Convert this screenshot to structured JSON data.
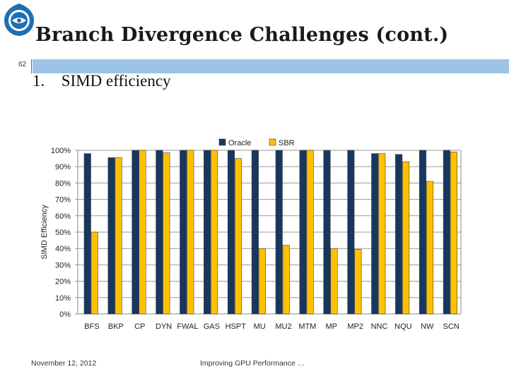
{
  "slide": {
    "title": "Branch Divergence Challenges (cont.)",
    "number": "62",
    "bullet_marker": "1.",
    "bullet_text": "SIMD efficiency",
    "footer_date": "November 12, 2012",
    "footer_title": "Improving GPU Performance …"
  },
  "colors": {
    "oracle": "#17375e",
    "sbr": "#ffc000",
    "header_bar": "#9dc3e6"
  },
  "chart_data": {
    "type": "bar",
    "ylabel": "SIMD Efficiency",
    "ylim": [
      0,
      100
    ],
    "yticks": [
      "0%",
      "10%",
      "20%",
      "30%",
      "40%",
      "50%",
      "60%",
      "70%",
      "80%",
      "90%",
      "100%"
    ],
    "legend_position": "top",
    "grid": true,
    "categories": [
      "BFS",
      "BKP",
      "CP",
      "DYN",
      "FWAL",
      "GAS",
      "HSPT",
      "MU",
      "MU2",
      "MTM",
      "MP",
      "MP2",
      "NNC",
      "NQU",
      "NW",
      "SCN"
    ],
    "series": [
      {
        "name": "Oracle",
        "values": [
          98,
          95.5,
          100,
          100,
          100,
          100,
          100,
          100,
          100,
          100,
          100,
          100,
          98,
          97.5,
          100,
          100
        ]
      },
      {
        "name": "SBR",
        "values": [
          50,
          95.5,
          100,
          98.5,
          100,
          100,
          95,
          40,
          42,
          100,
          40,
          39.5,
          98,
          93,
          81,
          99
        ]
      }
    ]
  }
}
